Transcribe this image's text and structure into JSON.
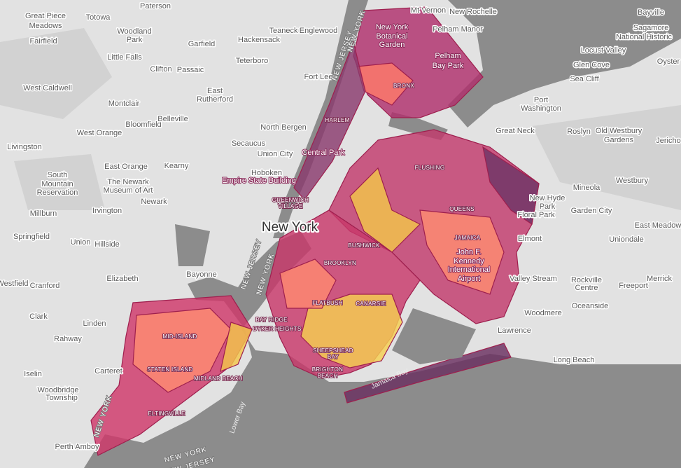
{
  "towns": [
    "Paterson",
    "Totowa",
    "Great Piece",
    "Meadows",
    "Woodland",
    "Park",
    "Fairfield",
    "Little Falls",
    "Clifton",
    "Passaic",
    "Garfield",
    "Hackensack",
    "Teaneck",
    "Englewood",
    "Teterboro",
    "Fort Lee",
    "West Caldwell",
    "Montclair",
    "East",
    "Rutherford",
    "Bloomfield",
    "West Orange",
    "Belleville",
    "North Bergen",
    "Livingston",
    "Secaucus",
    "Union City",
    "Kearny",
    "East Orange",
    "South",
    "Mountain",
    "Reservation",
    "The Newark",
    "Museum of Art",
    "Newark",
    "Hoboken",
    "Millburn",
    "Irvington",
    "Springfield",
    "Union",
    "Hillside",
    "Bayonne",
    "Elizabeth",
    "Cranford",
    "Westfield",
    "Linden",
    "Clark",
    "Rahway",
    "Carteret",
    "Iselin",
    "Woodbridge",
    "Township",
    "Perth Amboy",
    "Mt Vernon",
    "New Rochelle",
    "Pelham Manor",
    "Bayville",
    "Sagamore",
    "National Historic",
    "Locust Valley",
    "Glen Cove",
    "Sea Cliff",
    "Oyster",
    "Port",
    "Washington",
    "Great Neck",
    "Roslyn",
    "Old Westbury",
    "Gardens",
    "Jericho",
    "Mineola",
    "Westbury",
    "New Hyde",
    "Park",
    "Floral Park",
    "Garden City",
    "Elmont",
    "East Meadow",
    "Uniondale",
    "Valley Stream",
    "Rockville",
    "Centre",
    "Freeport",
    "Merrick",
    "Woodmere",
    "Oceanside",
    "Lawrence",
    "Long Beach"
  ],
  "districts": [
    "BRONX",
    "HARLEM",
    "GREENWICH",
    "VILLAGE",
    "FLUSHING",
    "QUEENS",
    "JAMAICA",
    "BUSHWICK",
    "BROOKLYN",
    "FLATBUSH",
    "CANARSIE",
    "BAY RIDGE",
    "DYKER HEIGHTS",
    "SHEEPSHEAD",
    "BAY",
    "BRIGHTON",
    "BEACH",
    "MID-ISLAND",
    "STATEN ISLAND",
    "MIDLAND BEACH",
    "ELTINGVILLE"
  ],
  "poi": [
    "New York",
    "Botanical",
    "Garden",
    "Pelham",
    "Bay Park",
    "Central Park",
    "Empire State Building",
    "John F.",
    "Kennedy",
    "International",
    "Airport"
  ],
  "city": "New York",
  "water": [
    "Jamaica Bay",
    "Lower Bay"
  ],
  "borders": [
    "NEW JERSEY",
    "NEW YORK",
    "NEW JERSEY",
    "NEW YORK",
    "NEW YORK",
    "NEW YORK",
    "NEW JERSEY"
  ]
}
